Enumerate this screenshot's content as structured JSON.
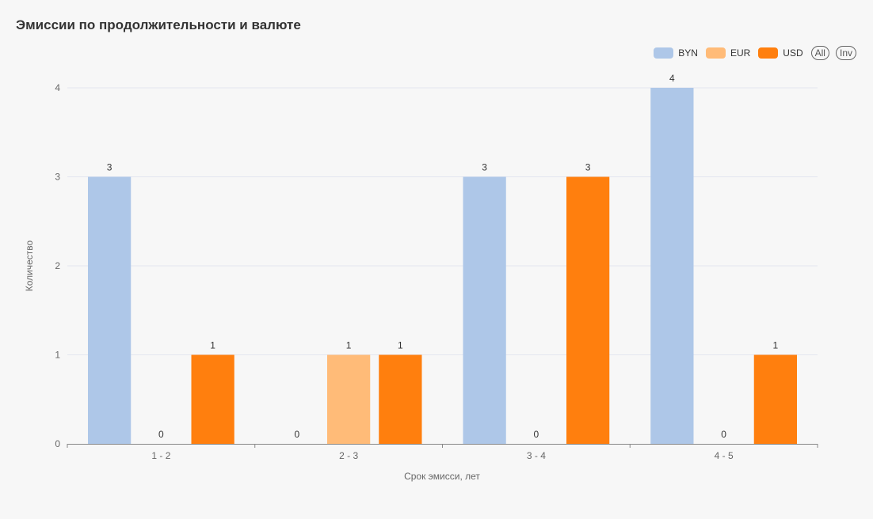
{
  "chart_data": {
    "type": "bar",
    "title": "Эмиссии по продолжительности и валюте",
    "xlabel": "Срок эмисси, лет",
    "ylabel": "Количество",
    "categories": [
      "1 - 2",
      "2 - 3",
      "3 - 4",
      "4 - 5"
    ],
    "series": [
      {
        "name": "BYN",
        "color": "#aec7e8",
        "values": [
          3,
          0,
          3,
          4
        ]
      },
      {
        "name": "EUR",
        "color": "#ffbb78",
        "values": [
          0,
          1,
          0,
          0
        ]
      },
      {
        "name": "USD",
        "color": "#ff7f0e",
        "values": [
          1,
          1,
          3,
          1
        ]
      }
    ],
    "ylim": [
      0,
      4
    ],
    "yticks": [
      0,
      1,
      2,
      3,
      4
    ],
    "grid": true,
    "legend_position": "top-right"
  },
  "legend": {
    "all_label": "All",
    "inv_label": "Inv"
  }
}
